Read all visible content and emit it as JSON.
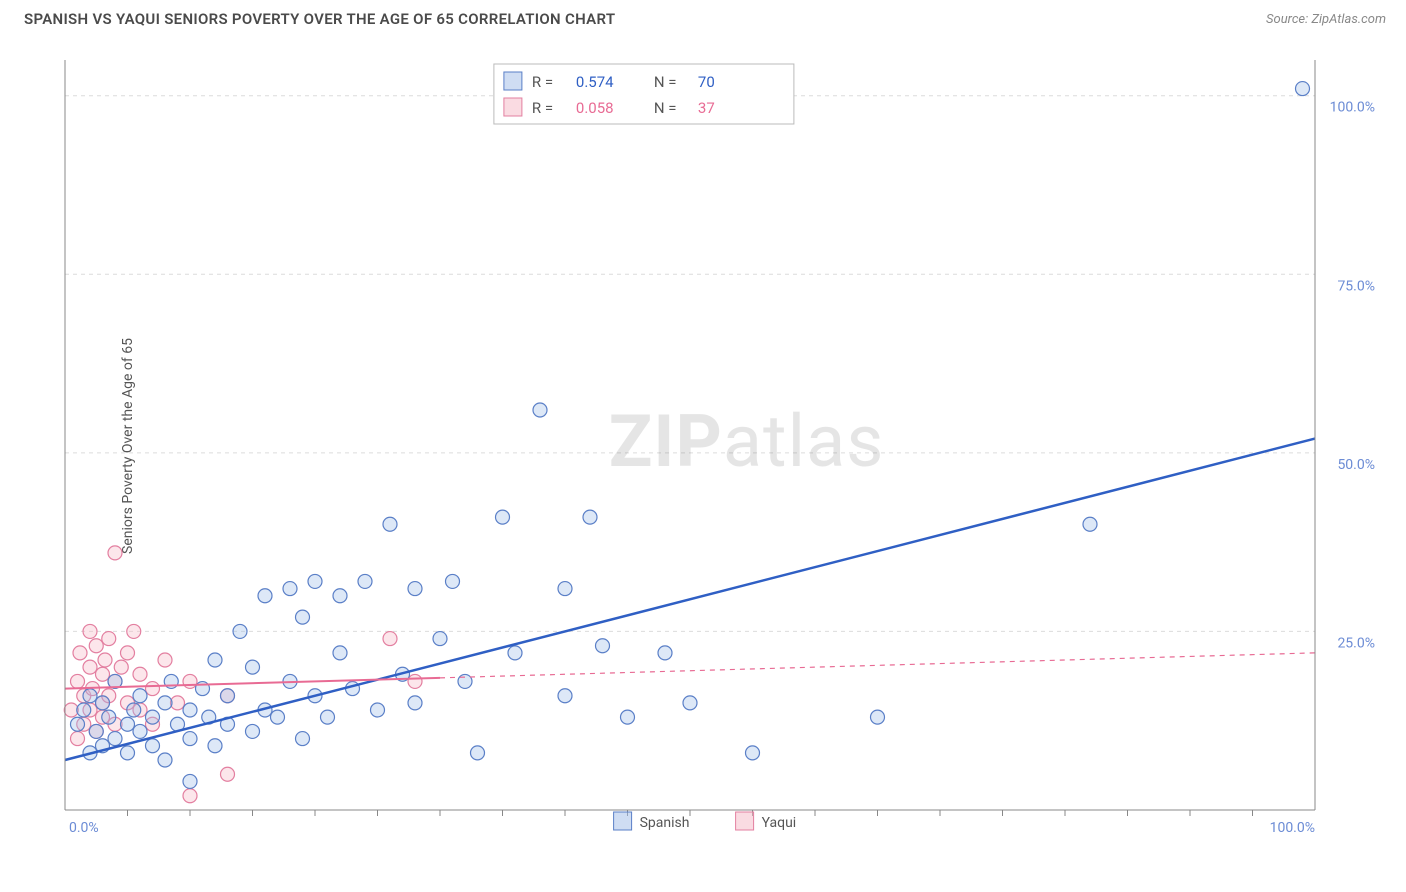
{
  "title": "SPANISH VS YAQUI SENIORS POVERTY OVER THE AGE OF 65 CORRELATION CHART",
  "source_label": "Source: ",
  "source_name": "ZipAtlas.com",
  "ylabel": "Seniors Poverty Over the Age of 65",
  "watermark_a": "ZIP",
  "watermark_b": "atlas",
  "chart": {
    "type": "scatter",
    "xlim": [
      0,
      100
    ],
    "ylim": [
      0,
      105
    ],
    "y_ticks": [
      25,
      50,
      75,
      100
    ],
    "y_tick_labels": [
      "25.0%",
      "50.0%",
      "75.0%",
      "100.0%"
    ],
    "x_end_ticks": [
      0,
      100
    ],
    "x_end_labels": [
      "0.0%",
      "100.0%"
    ],
    "x_minor_ticks": [
      5,
      10,
      15,
      20,
      25,
      30,
      35,
      40,
      45,
      50,
      55,
      60,
      65,
      70,
      75,
      80,
      85,
      90,
      95
    ],
    "grid_color": "#dcdcdc",
    "axis_color": "#888888",
    "background": "#ffffff",
    "marker_radius": 7,
    "series": [
      {
        "name": "Spanish",
        "color_fill": "#9fbce8",
        "color_stroke": "#5a7fc7",
        "r_value": "0.574",
        "n_value": "70",
        "trend": {
          "x1": 0,
          "y1": 7,
          "x2": 100,
          "y2": 52,
          "color": "#2f5fc4"
        },
        "points": [
          [
            1,
            12
          ],
          [
            1.5,
            14
          ],
          [
            2,
            8
          ],
          [
            2,
            16
          ],
          [
            2.5,
            11
          ],
          [
            3,
            9
          ],
          [
            3,
            15
          ],
          [
            3.5,
            13
          ],
          [
            4,
            10
          ],
          [
            4,
            18
          ],
          [
            5,
            8
          ],
          [
            5,
            12
          ],
          [
            5.5,
            14
          ],
          [
            6,
            11
          ],
          [
            6,
            16
          ],
          [
            7,
            9
          ],
          [
            7,
            13
          ],
          [
            8,
            7
          ],
          [
            8,
            15
          ],
          [
            8.5,
            18
          ],
          [
            9,
            12
          ],
          [
            10,
            10
          ],
          [
            10,
            14
          ],
          [
            10,
            4
          ],
          [
            11,
            17
          ],
          [
            11.5,
            13
          ],
          [
            12,
            9
          ],
          [
            12,
            21
          ],
          [
            13,
            12
          ],
          [
            13,
            16
          ],
          [
            14,
            25
          ],
          [
            15,
            11
          ],
          [
            15,
            20
          ],
          [
            16,
            14
          ],
          [
            16,
            30
          ],
          [
            17,
            13
          ],
          [
            18,
            18
          ],
          [
            18,
            31
          ],
          [
            19,
            10
          ],
          [
            19,
            27
          ],
          [
            20,
            16
          ],
          [
            20,
            32
          ],
          [
            21,
            13
          ],
          [
            22,
            22
          ],
          [
            22,
            30
          ],
          [
            23,
            17
          ],
          [
            24,
            32
          ],
          [
            25,
            14
          ],
          [
            26,
            40
          ],
          [
            27,
            19
          ],
          [
            28,
            31
          ],
          [
            28,
            15
          ],
          [
            30,
            24
          ],
          [
            31,
            32
          ],
          [
            32,
            18
          ],
          [
            33,
            8
          ],
          [
            35,
            41
          ],
          [
            36,
            22
          ],
          [
            38,
            56
          ],
          [
            40,
            31
          ],
          [
            40,
            16
          ],
          [
            42,
            41
          ],
          [
            43,
            23
          ],
          [
            45,
            13
          ],
          [
            48,
            22
          ],
          [
            50,
            15
          ],
          [
            55,
            8
          ],
          [
            65,
            13
          ],
          [
            82,
            40
          ],
          [
            99,
            101
          ]
        ]
      },
      {
        "name": "Yaqui",
        "color_fill": "#f5b8c6",
        "color_stroke": "#e37fa0",
        "r_value": "0.058",
        "n_value": "37",
        "trend_solid": {
          "x1": 0,
          "y1": 17,
          "x2": 30,
          "y2": 18.5,
          "color": "#e86b94"
        },
        "trend_dash": {
          "x1": 30,
          "y1": 18.5,
          "x2": 100,
          "y2": 22,
          "color": "#e86b94"
        },
        "points": [
          [
            0.5,
            14
          ],
          [
            1,
            18
          ],
          [
            1,
            10
          ],
          [
            1.2,
            22
          ],
          [
            1.5,
            16
          ],
          [
            1.5,
            12
          ],
          [
            2,
            20
          ],
          [
            2,
            14
          ],
          [
            2,
            25
          ],
          [
            2.2,
            17
          ],
          [
            2.5,
            11
          ],
          [
            2.5,
            23
          ],
          [
            3,
            15
          ],
          [
            3,
            19
          ],
          [
            3,
            13
          ],
          [
            3.2,
            21
          ],
          [
            3.5,
            24
          ],
          [
            3.5,
            16
          ],
          [
            4,
            18
          ],
          [
            4,
            12
          ],
          [
            4,
            36
          ],
          [
            4.5,
            20
          ],
          [
            5,
            15
          ],
          [
            5,
            22
          ],
          [
            5.5,
            25
          ],
          [
            6,
            14
          ],
          [
            6,
            19
          ],
          [
            7,
            17
          ],
          [
            7,
            12
          ],
          [
            8,
            21
          ],
          [
            9,
            15
          ],
          [
            10,
            18
          ],
          [
            10,
            2
          ],
          [
            13,
            5
          ],
          [
            13,
            16
          ],
          [
            26,
            24
          ],
          [
            28,
            18
          ]
        ]
      }
    ],
    "stats_box": {
      "r_label": "R  =",
      "n_label": "N  =",
      "val_color_a": "#2f5fc4",
      "val_color_b": "#e86b94"
    },
    "bottom_legend": [
      {
        "label": "Spanish",
        "fill": "#9fbce8",
        "stroke": "#5a7fc7"
      },
      {
        "label": "Yaqui",
        "fill": "#f5b8c6",
        "stroke": "#e37fa0"
      }
    ]
  }
}
